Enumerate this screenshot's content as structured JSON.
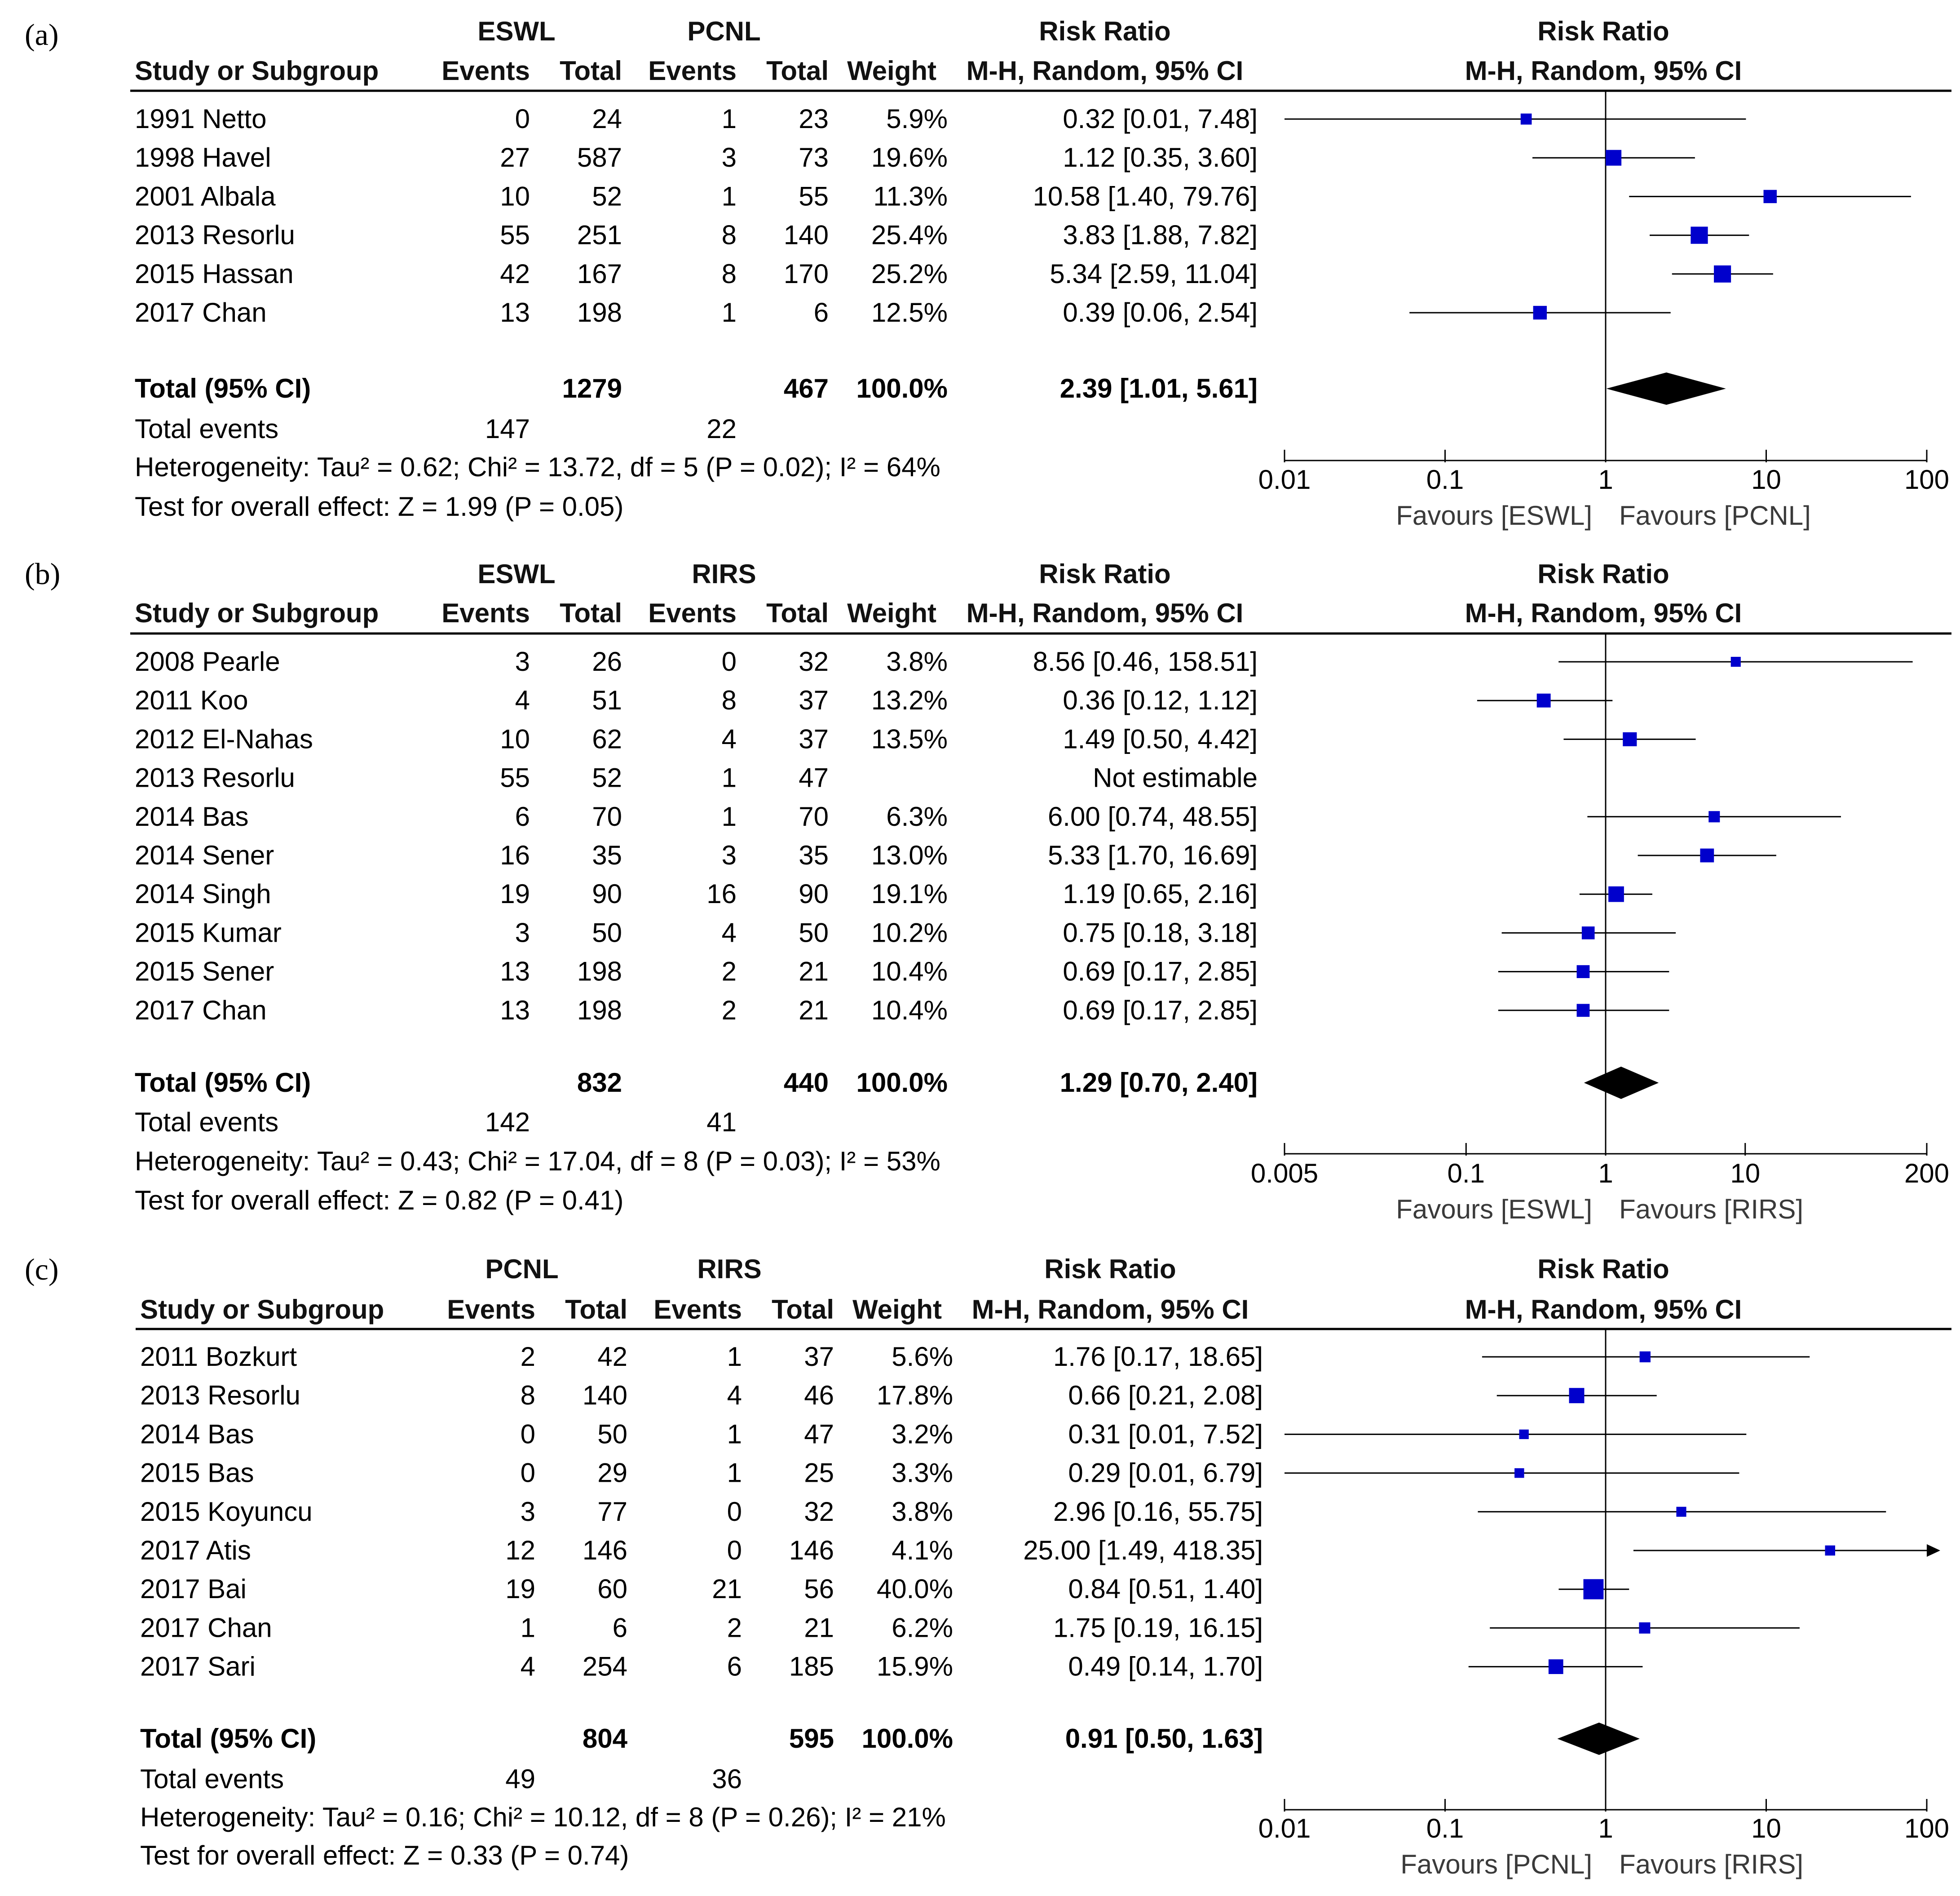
{
  "chart_data": [
    {
      "type": "forest",
      "panel_label": "(a)",
      "group1": "ESWL",
      "group2": "PCNL",
      "columns": {
        "study": "Study or Subgroup",
        "events": "Events",
        "total": "Total",
        "weight": "Weight",
        "effect_title": "Risk Ratio",
        "effect_method": "M-H, Random, 95% CI"
      },
      "studies": [
        {
          "name": "1991 Netto",
          "e1": "0",
          "n1": "24",
          "e2": "1",
          "n2": "23",
          "weight": "5.9%",
          "ci_text": "0.32 [0.01, 7.48]",
          "rr": 0.32,
          "lo": 0.01,
          "hi": 7.48,
          "w": 5.9
        },
        {
          "name": "1998 Havel",
          "e1": "27",
          "n1": "587",
          "e2": "3",
          "n2": "73",
          "weight": "19.6%",
          "ci_text": "1.12 [0.35, 3.60]",
          "rr": 1.12,
          "lo": 0.35,
          "hi": 3.6,
          "w": 19.6
        },
        {
          "name": "2001 Albala",
          "e1": "10",
          "n1": "52",
          "e2": "1",
          "n2": "55",
          "weight": "11.3%",
          "ci_text": "10.58 [1.40, 79.76]",
          "rr": 10.58,
          "lo": 1.4,
          "hi": 79.76,
          "w": 11.3
        },
        {
          "name": "2013 Resorlu",
          "e1": "55",
          "n1": "251",
          "e2": "8",
          "n2": "140",
          "weight": "25.4%",
          "ci_text": "3.83 [1.88, 7.82]",
          "rr": 3.83,
          "lo": 1.88,
          "hi": 7.82,
          "w": 25.4
        },
        {
          "name": "2015 Hassan",
          "e1": "42",
          "n1": "167",
          "e2": "8",
          "n2": "170",
          "weight": "25.2%",
          "ci_text": "5.34 [2.59, 11.04]",
          "rr": 5.34,
          "lo": 2.59,
          "hi": 11.04,
          "w": 25.2
        },
        {
          "name": "2017 Chan",
          "e1": "13",
          "n1": "198",
          "e2": "1",
          "n2": "6",
          "weight": "12.5%",
          "ci_text": "0.39 [0.06, 2.54]",
          "rr": 0.39,
          "lo": 0.06,
          "hi": 2.54,
          "w": 12.5
        }
      ],
      "total": {
        "label": "Total (95% CI)",
        "n1": "1279",
        "n2": "467",
        "weight": "100.0%",
        "ci_text": "2.39 [1.01, 5.61]",
        "rr": 2.39,
        "lo": 1.01,
        "hi": 5.61
      },
      "total_events": {
        "label": "Total events",
        "e1": "147",
        "e2": "22"
      },
      "heterogeneity": "Heterogeneity: Tau² = 0.62; Chi² = 13.72, df = 5 (P = 0.02); I² = 64%",
      "overall_effect": "Test for overall effect: Z = 1.99 (P = 0.05)",
      "axis": {
        "scale": "log",
        "xlim": [
          0.01,
          100
        ],
        "ticks": [
          0.01,
          0.1,
          1,
          10,
          100
        ],
        "tick_labels": [
          "0.01",
          "0.1",
          "1",
          "10",
          "100"
        ]
      },
      "favours_left": "Favours [ESWL]",
      "favours_right": "Favours [PCNL]"
    },
    {
      "type": "forest",
      "panel_label": "(b)",
      "group1": "ESWL",
      "group2": "RIRS",
      "columns": {
        "study": "Study or Subgroup",
        "events": "Events",
        "total": "Total",
        "weight": "Weight",
        "effect_title": "Risk Ratio",
        "effect_method": "M-H, Random, 95% CI"
      },
      "studies": [
        {
          "name": "2008 Pearle",
          "e1": "3",
          "n1": "26",
          "e2": "0",
          "n2": "32",
          "weight": "3.8%",
          "ci_text": "8.56 [0.46, 158.51]",
          "rr": 8.56,
          "lo": 0.46,
          "hi": 158.51,
          "w": 3.8
        },
        {
          "name": "2011 Koo",
          "e1": "4",
          "n1": "51",
          "e2": "8",
          "n2": "37",
          "weight": "13.2%",
          "ci_text": "0.36 [0.12, 1.12]",
          "rr": 0.36,
          "lo": 0.12,
          "hi": 1.12,
          "w": 13.2
        },
        {
          "name": "2012 El-Nahas",
          "e1": "10",
          "n1": "62",
          "e2": "4",
          "n2": "37",
          "weight": "13.5%",
          "ci_text": "1.49 [0.50, 4.42]",
          "rr": 1.49,
          "lo": 0.5,
          "hi": 4.42,
          "w": 13.5
        },
        {
          "name": "2013 Resorlu",
          "e1": "55",
          "n1": "52",
          "e2": "1",
          "n2": "47",
          "weight": "",
          "ci_text": "Not estimable",
          "rr": null,
          "lo": null,
          "hi": null,
          "w": 0
        },
        {
          "name": "2014 Bas",
          "e1": "6",
          "n1": "70",
          "e2": "1",
          "n2": "70",
          "weight": "6.3%",
          "ci_text": "6.00 [0.74, 48.55]",
          "rr": 6.0,
          "lo": 0.74,
          "hi": 48.55,
          "w": 6.3
        },
        {
          "name": "2014 Sener",
          "e1": "16",
          "n1": "35",
          "e2": "3",
          "n2": "35",
          "weight": "13.0%",
          "ci_text": "5.33 [1.70, 16.69]",
          "rr": 5.33,
          "lo": 1.7,
          "hi": 16.69,
          "w": 13.0
        },
        {
          "name": "2014 Singh",
          "e1": "19",
          "n1": "90",
          "e2": "16",
          "n2": "90",
          "weight": "19.1%",
          "ci_text": "1.19 [0.65, 2.16]",
          "rr": 1.19,
          "lo": 0.65,
          "hi": 2.16,
          "w": 19.1
        },
        {
          "name": "2015 Kumar",
          "e1": "3",
          "n1": "50",
          "e2": "4",
          "n2": "50",
          "weight": "10.2%",
          "ci_text": "0.75 [0.18, 3.18]",
          "rr": 0.75,
          "lo": 0.18,
          "hi": 3.18,
          "w": 10.2
        },
        {
          "name": "2015 Sener",
          "e1": "13",
          "n1": "198",
          "e2": "2",
          "n2": "21",
          "weight": "10.4%",
          "ci_text": "0.69 [0.17, 2.85]",
          "rr": 0.69,
          "lo": 0.17,
          "hi": 2.85,
          "w": 10.4
        },
        {
          "name": "2017 Chan",
          "e1": "13",
          "n1": "198",
          "e2": "2",
          "n2": "21",
          "weight": "10.4%",
          "ci_text": "0.69 [0.17, 2.85]",
          "rr": 0.69,
          "lo": 0.17,
          "hi": 2.85,
          "w": 10.4
        }
      ],
      "total": {
        "label": "Total (95% CI)",
        "n1": "832",
        "n2": "440",
        "weight": "100.0%",
        "ci_text": "1.29 [0.70, 2.40]",
        "rr": 1.29,
        "lo": 0.7,
        "hi": 2.4
      },
      "total_events": {
        "label": "Total events",
        "e1": "142",
        "e2": "41"
      },
      "heterogeneity": "Heterogeneity: Tau² = 0.43; Chi² = 17.04, df = 8 (P = 0.03); I² = 53%",
      "overall_effect": "Test for overall effect: Z = 0.82 (P = 0.41)",
      "axis": {
        "scale": "log",
        "xlim": [
          0.005,
          200
        ],
        "ticks": [
          0.005,
          0.1,
          1,
          10,
          200
        ],
        "tick_labels": [
          "0.005",
          "0.1",
          "1",
          "10",
          "200"
        ]
      },
      "favours_left": "Favours [ESWL]",
      "favours_right": "Favours [RIRS]"
    },
    {
      "type": "forest",
      "panel_label": "(c)",
      "group1": "PCNL",
      "group2": "RIRS",
      "columns": {
        "study": "Study or Subgroup",
        "events": "Events",
        "total": "Total",
        "weight": "Weight",
        "effect_title": "Risk Ratio",
        "effect_method": "M-H, Random, 95% CI"
      },
      "studies": [
        {
          "name": "2011 Bozkurt",
          "e1": "2",
          "n1": "42",
          "e2": "1",
          "n2": "37",
          "weight": "5.6%",
          "ci_text": "1.76 [0.17, 18.65]",
          "rr": 1.76,
          "lo": 0.17,
          "hi": 18.65,
          "w": 5.6
        },
        {
          "name": "2013 Resorlu",
          "e1": "8",
          "n1": "140",
          "e2": "4",
          "n2": "46",
          "weight": "17.8%",
          "ci_text": "0.66 [0.21, 2.08]",
          "rr": 0.66,
          "lo": 0.21,
          "hi": 2.08,
          "w": 17.8
        },
        {
          "name": "2014 Bas",
          "e1": "0",
          "n1": "50",
          "e2": "1",
          "n2": "47",
          "weight": "3.2%",
          "ci_text": "0.31 [0.01, 7.52]",
          "rr": 0.31,
          "lo": 0.01,
          "hi": 7.52,
          "w": 3.2
        },
        {
          "name": "2015 Bas",
          "e1": "0",
          "n1": "29",
          "e2": "1",
          "n2": "25",
          "weight": "3.3%",
          "ci_text": "0.29 [0.01, 6.79]",
          "rr": 0.29,
          "lo": 0.01,
          "hi": 6.79,
          "w": 3.3
        },
        {
          "name": "2015 Koyuncu",
          "e1": "3",
          "n1": "77",
          "e2": "0",
          "n2": "32",
          "weight": "3.8%",
          "ci_text": "2.96 [0.16, 55.75]",
          "rr": 2.96,
          "lo": 0.16,
          "hi": 55.75,
          "w": 3.8
        },
        {
          "name": "2017 Atis",
          "e1": "12",
          "n1": "146",
          "e2": "0",
          "n2": "146",
          "weight": "4.1%",
          "ci_text": "25.00 [1.49, 418.35]",
          "rr": 25.0,
          "lo": 1.49,
          "hi": 418.35,
          "w": 4.1
        },
        {
          "name": "2017 Bai",
          "e1": "19",
          "n1": "60",
          "e2": "21",
          "n2": "56",
          "weight": "40.0%",
          "ci_text": "0.84 [0.51, 1.40]",
          "rr": 0.84,
          "lo": 0.51,
          "hi": 1.4,
          "w": 40.0
        },
        {
          "name": "2017 Chan",
          "e1": "1",
          "n1": "6",
          "e2": "2",
          "n2": "21",
          "weight": "6.2%",
          "ci_text": "1.75 [0.19, 16.15]",
          "rr": 1.75,
          "lo": 0.19,
          "hi": 16.15,
          "w": 6.2
        },
        {
          "name": "2017 Sari",
          "e1": "4",
          "n1": "254",
          "e2": "6",
          "n2": "185",
          "weight": "15.9%",
          "ci_text": "0.49 [0.14, 1.70]",
          "rr": 0.49,
          "lo": 0.14,
          "hi": 1.7,
          "w": 15.9
        }
      ],
      "total": {
        "label": "Total (95% CI)",
        "n1": "804",
        "n2": "595",
        "weight": "100.0%",
        "ci_text": "0.91 [0.50, 1.63]",
        "rr": 0.91,
        "lo": 0.5,
        "hi": 1.63
      },
      "total_events": {
        "label": "Total events",
        "e1": "49",
        "e2": "36"
      },
      "heterogeneity": "Heterogeneity: Tau² = 0.16; Chi² = 10.12, df = 8 (P = 0.26); I² = 21%",
      "overall_effect": "Test for overall effect: Z = 0.33 (P = 0.74)",
      "axis": {
        "scale": "log",
        "xlim": [
          0.01,
          100
        ],
        "ticks": [
          0.01,
          0.1,
          1,
          10,
          100
        ],
        "tick_labels": [
          "0.01",
          "0.1",
          "1",
          "10",
          "100"
        ]
      },
      "favours_left": "Favours [PCNL]",
      "favours_right": "Favours [RIRS]"
    }
  ],
  "colors": {
    "marker": "#0000cc",
    "line": "#000000",
    "diamond": "#000000"
  }
}
